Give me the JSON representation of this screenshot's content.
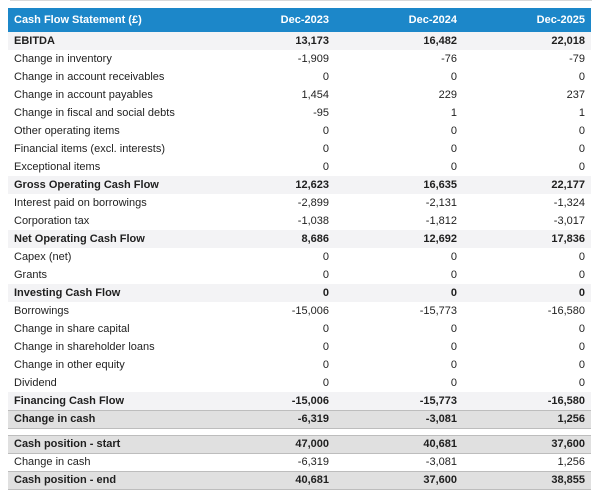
{
  "chart_data": {
    "type": "table",
    "title": "Cash Flow Statement (£)",
    "columns": [
      "Dec-2023",
      "Dec-2024",
      "Dec-2025"
    ],
    "colors": {
      "header_bg": "#1c87c9",
      "header_text": "#ffffff",
      "subtotal_row_bg": "#f3f3f5",
      "emphasis_row_bg": "#e0e0e0",
      "body_text": "#1f1f1f"
    },
    "sections": [
      {
        "rows": [
          {
            "label": "EBITDA",
            "values": [
              "13,173",
              "16,482",
              "22,018"
            ],
            "style": "subtotal"
          },
          {
            "label": "Change in inventory",
            "values": [
              "-1,909",
              "-76",
              "-79"
            ],
            "style": "normal"
          },
          {
            "label": "Change in account receivables",
            "values": [
              "0",
              "0",
              "0"
            ],
            "style": "normal"
          },
          {
            "label": "Change in account payables",
            "values": [
              "1,454",
              "229",
              "237"
            ],
            "style": "normal"
          },
          {
            "label": "Change in fiscal and social debts",
            "values": [
              "-95",
              "1",
              "1"
            ],
            "style": "normal"
          },
          {
            "label": "Other operating items",
            "values": [
              "0",
              "0",
              "0"
            ],
            "style": "normal"
          },
          {
            "label": "Financial items (excl. interests)",
            "values": [
              "0",
              "0",
              "0"
            ],
            "style": "normal"
          },
          {
            "label": "Exceptional items",
            "values": [
              "0",
              "0",
              "0"
            ],
            "style": "normal"
          },
          {
            "label": "Gross Operating Cash Flow",
            "values": [
              "12,623",
              "16,635",
              "22,177"
            ],
            "style": "subtotal"
          },
          {
            "label": "Interest paid on borrowings",
            "values": [
              "-2,899",
              "-2,131",
              "-1,324"
            ],
            "style": "normal"
          },
          {
            "label": "Corporation tax",
            "values": [
              "-1,038",
              "-1,812",
              "-3,017"
            ],
            "style": "normal"
          },
          {
            "label": "Net Operating Cash Flow",
            "values": [
              "8,686",
              "12,692",
              "17,836"
            ],
            "style": "subtotal"
          },
          {
            "label": "Capex (net)",
            "values": [
              "0",
              "0",
              "0"
            ],
            "style": "normal"
          },
          {
            "label": "Grants",
            "values": [
              "0",
              "0",
              "0"
            ],
            "style": "normal"
          },
          {
            "label": "Investing Cash Flow",
            "values": [
              "0",
              "0",
              "0"
            ],
            "style": "subtotal"
          },
          {
            "label": "Borrowings",
            "values": [
              "-15,006",
              "-15,773",
              "-16,580"
            ],
            "style": "normal"
          },
          {
            "label": "Change in share capital",
            "values": [
              "0",
              "0",
              "0"
            ],
            "style": "normal"
          },
          {
            "label": "Change in shareholder loans",
            "values": [
              "0",
              "0",
              "0"
            ],
            "style": "normal"
          },
          {
            "label": "Change in other equity",
            "values": [
              "0",
              "0",
              "0"
            ],
            "style": "normal"
          },
          {
            "label": "Dividend",
            "values": [
              "0",
              "0",
              "0"
            ],
            "style": "normal"
          },
          {
            "label": "Financing Cash Flow",
            "values": [
              "-15,006",
              "-15,773",
              "-16,580"
            ],
            "style": "subtotal"
          },
          {
            "label": "Change in cash",
            "values": [
              "-6,319",
              "-3,081",
              "1,256"
            ],
            "style": "emphasis"
          }
        ]
      },
      {
        "rows": [
          {
            "label": "Cash position - start",
            "values": [
              "47,000",
              "40,681",
              "37,600"
            ],
            "style": "emphasis"
          },
          {
            "label": "Change in cash",
            "values": [
              "-6,319",
              "-3,081",
              "1,256"
            ],
            "style": "normal"
          },
          {
            "label": "Cash position - end",
            "values": [
              "40,681",
              "37,600",
              "38,855"
            ],
            "style": "emphasis"
          }
        ]
      }
    ]
  }
}
